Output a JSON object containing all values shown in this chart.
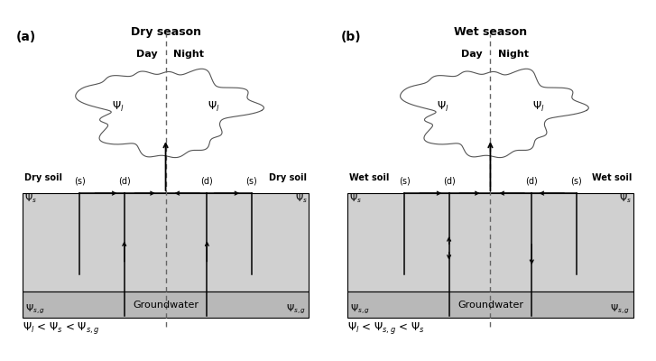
{
  "fig_width": 7.27,
  "fig_height": 4.0,
  "dpi": 100,
  "bg_color": "#ffffff",
  "panel_a": {
    "label": "(a)",
    "title": "Dry season",
    "day_label": "Day",
    "night_label": "Night",
    "left_soil_label": "Dry soil",
    "right_soil_label": "Dry soil",
    "groundwater_label": "Groundwater",
    "formula": "$\\Psi_l$ < $\\Psi_s$ < $\\Psi_{s,g}$",
    "s_left": "(s)",
    "d_left": "(d)",
    "d_right": "(d)",
    "s_right": "(s)"
  },
  "panel_b": {
    "label": "(b)",
    "title": "Wet season",
    "day_label": "Day",
    "night_label": "Night",
    "left_soil_label": "Wet soil",
    "right_soil_label": "Wet soil",
    "groundwater_label": "Groundwater",
    "formula": "$\\Psi_l$ < $\\Psi_{s,g}$ < $\\Psi_s$",
    "s_left": "(s)",
    "d_left": "(d)",
    "d_right": "(d)",
    "s_right": "(s)"
  },
  "soil_color": "#d0d0d0",
  "groundwater_color": "#b8b8b8",
  "line_color": "#000000",
  "text_color": "#000000",
  "crown_color": "#555555"
}
